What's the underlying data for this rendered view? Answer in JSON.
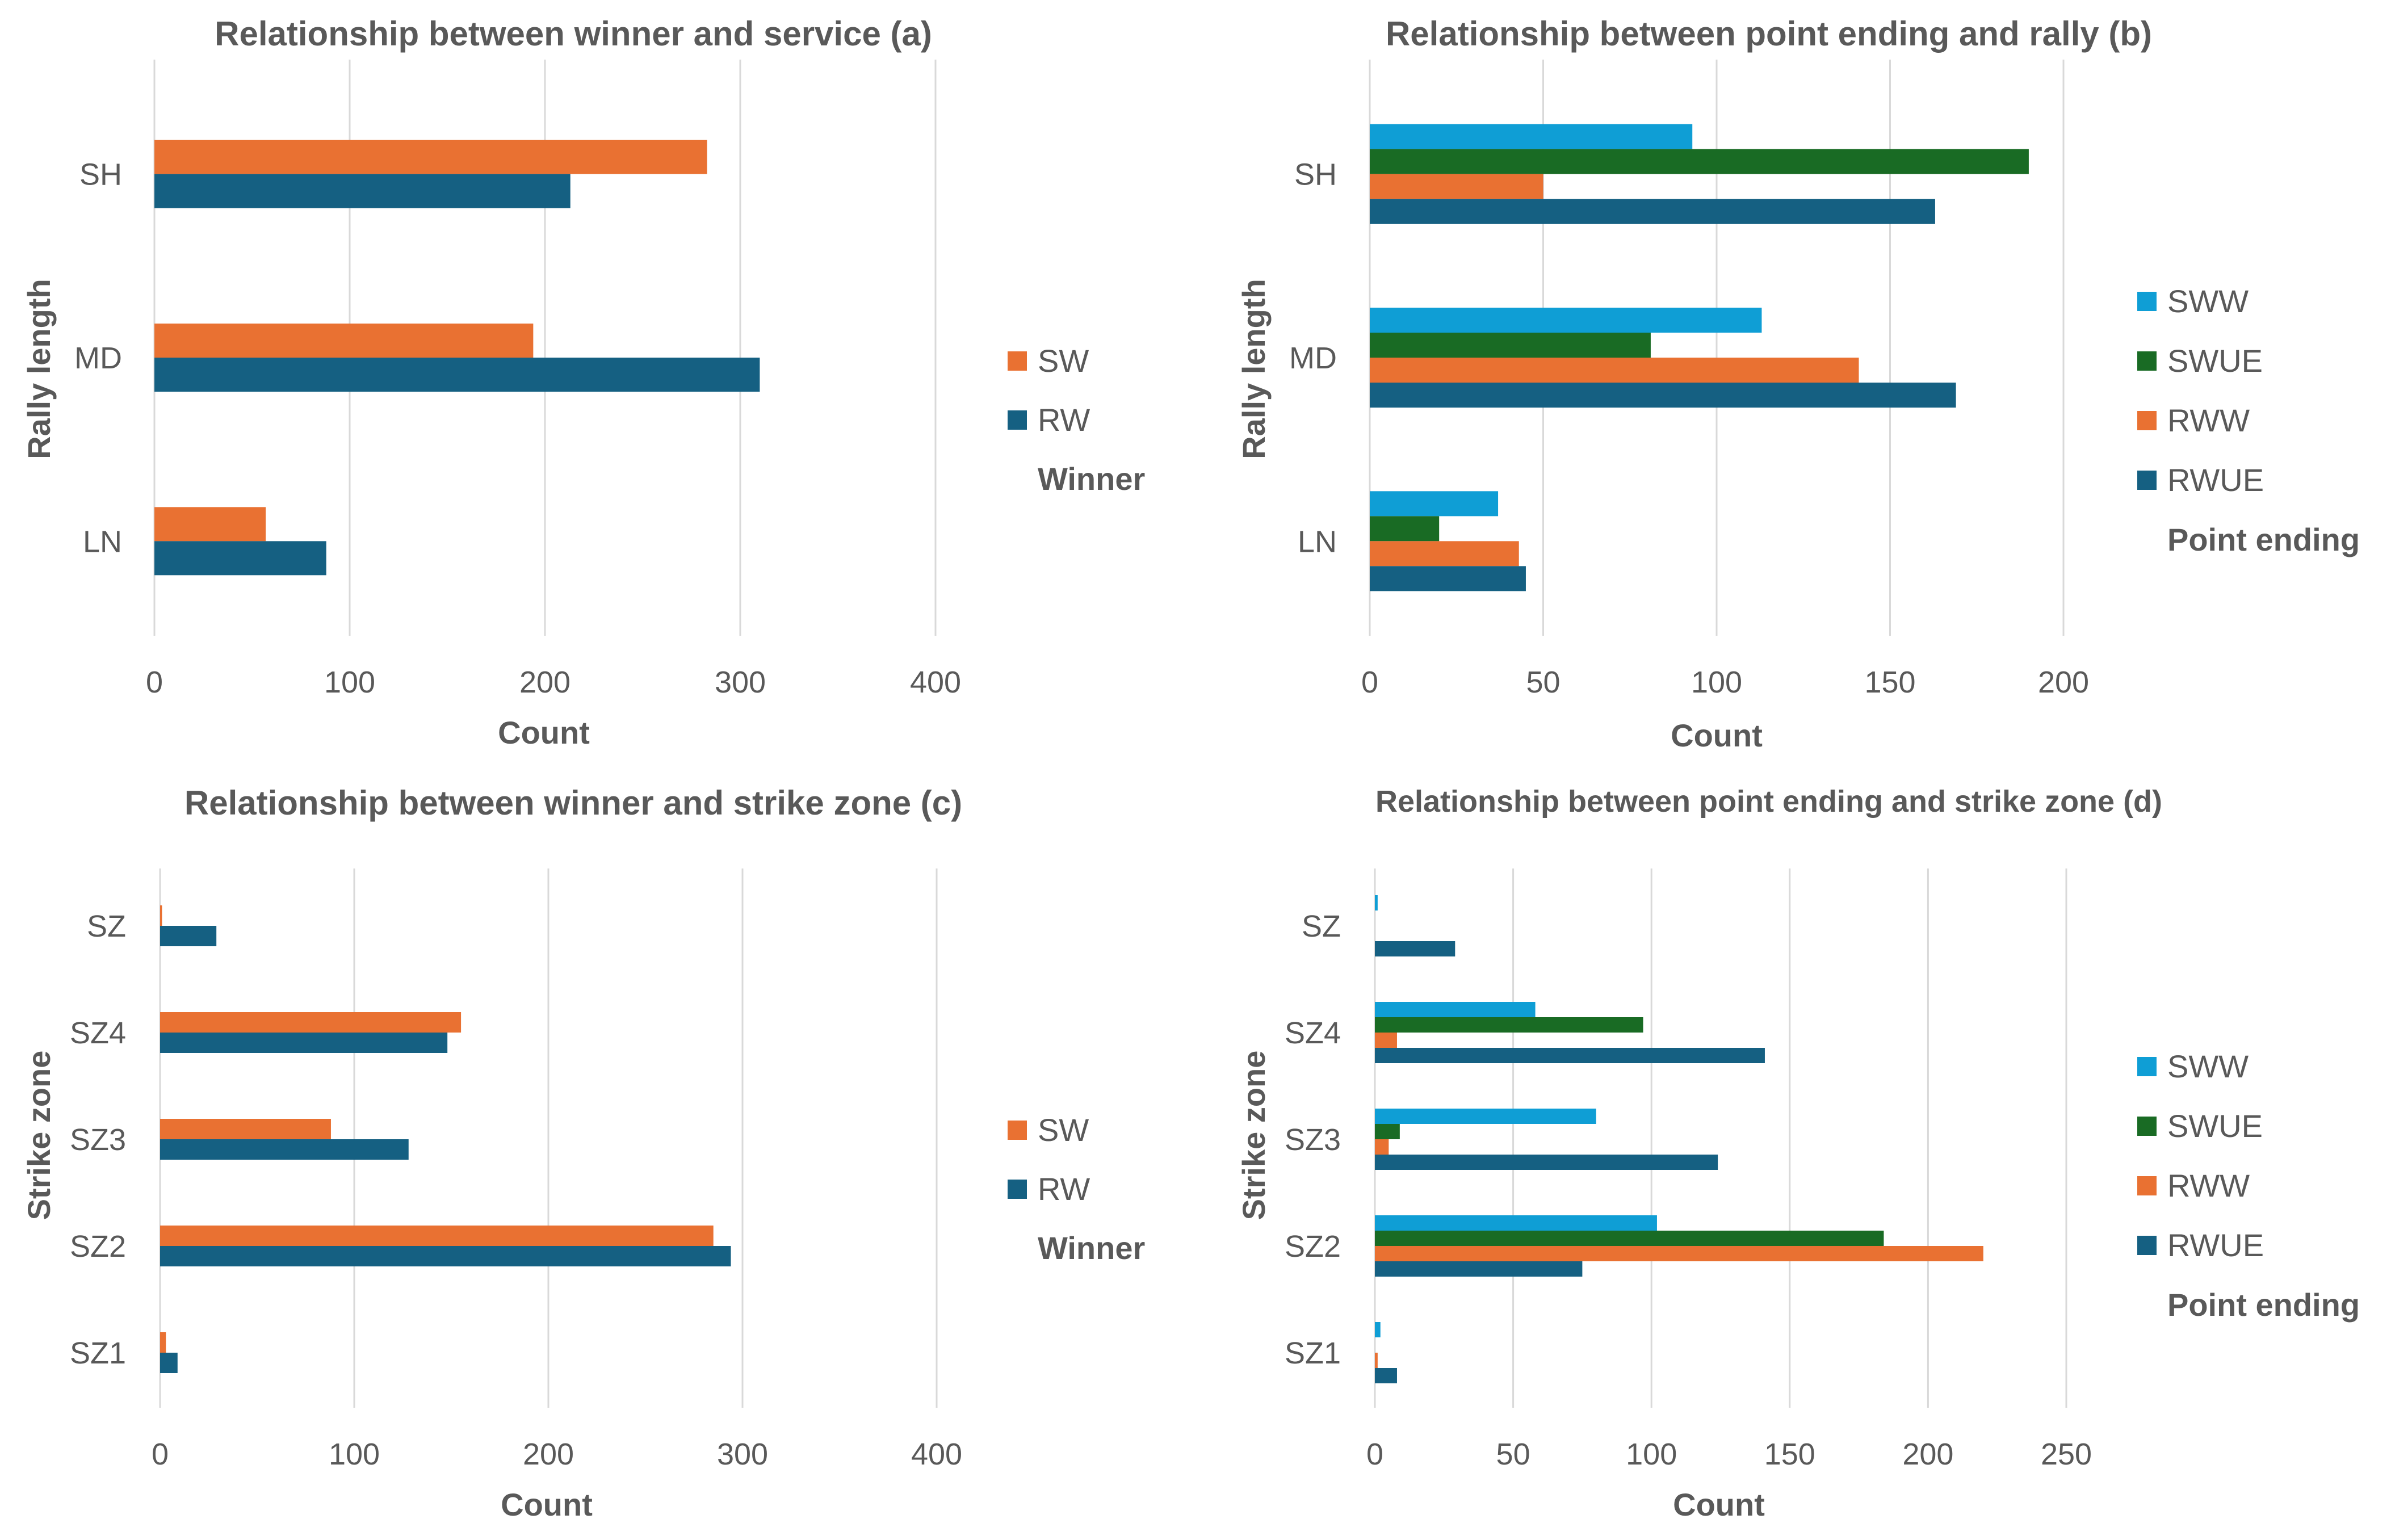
{
  "colors": {
    "SW": "#E97132",
    "RW": "#156082",
    "SWW": "#0F9ED5",
    "SWUE": "#196B24",
    "RWW": "#E97132",
    "RWUE": "#156082"
  },
  "chart_data": [
    {
      "id": "a",
      "type": "bar",
      "orientation": "horizontal",
      "title": "Relationship between winner and service (a)",
      "xlabel": "Count",
      "ylabel": "Rally length",
      "categories": [
        "SH",
        "MD",
        "LN"
      ],
      "xlim": [
        0,
        400
      ],
      "xticks": [
        "0",
        "100",
        "200",
        "300",
        "400"
      ],
      "grid": true,
      "legend_title": "Winner",
      "legend_position": "right",
      "series": [
        {
          "name": "SW",
          "values": [
            283,
            194,
            57
          ]
        },
        {
          "name": "RW",
          "values": [
            213,
            310,
            88
          ]
        }
      ]
    },
    {
      "id": "b",
      "type": "bar",
      "orientation": "horizontal",
      "title": "Relationship between point ending and rally (b)",
      "xlabel": "Count",
      "ylabel": "Rally length",
      "categories": [
        "SH",
        "MD",
        "LN"
      ],
      "xlim": [
        0,
        200
      ],
      "xticks": [
        "0",
        "50",
        "100",
        "150",
        "200"
      ],
      "grid": true,
      "legend_title": "Point ending",
      "legend_position": "right",
      "series": [
        {
          "name": "SWW",
          "values": [
            93,
            113,
            37
          ]
        },
        {
          "name": "SWUE",
          "values": [
            190,
            81,
            20
          ]
        },
        {
          "name": "RWW",
          "values": [
            50,
            141,
            43
          ]
        },
        {
          "name": "RWUE",
          "values": [
            163,
            169,
            45
          ]
        }
      ]
    },
    {
      "id": "c",
      "type": "bar",
      "orientation": "horizontal",
      "title": "Relationship between winner and strike zone (c)",
      "xlabel": "Count",
      "ylabel": "Strike zone",
      "categories": [
        "SZ",
        "SZ4",
        "SZ3",
        "SZ2",
        "SZ1"
      ],
      "xlim": [
        0,
        400
      ],
      "xticks": [
        "0",
        "100",
        "200",
        "300",
        "400"
      ],
      "grid": true,
      "legend_title": "Winner",
      "legend_position": "right",
      "series": [
        {
          "name": "SW",
          "values": [
            1,
            155,
            88,
            285,
            3
          ]
        },
        {
          "name": "RW",
          "values": [
            29,
            148,
            128,
            294,
            9
          ]
        }
      ]
    },
    {
      "id": "d",
      "type": "bar",
      "orientation": "horizontal",
      "title": "Relationship between point ending and strike zone (d)",
      "xlabel": "Count",
      "ylabel": "Strike zone",
      "categories": [
        "SZ",
        "SZ4",
        "SZ3",
        "SZ2",
        "SZ1"
      ],
      "xlim": [
        0,
        250
      ],
      "xticks": [
        "0",
        "50",
        "100",
        "150",
        "200",
        "250"
      ],
      "grid": true,
      "legend_title": "Point ending",
      "legend_position": "right",
      "series": [
        {
          "name": "SWW",
          "values": [
            1,
            58,
            80,
            102,
            2
          ]
        },
        {
          "name": "SWUE",
          "values": [
            0,
            97,
            9,
            184,
            0
          ]
        },
        {
          "name": "RWW",
          "values": [
            0,
            8,
            5,
            220,
            1
          ]
        },
        {
          "name": "RWUE",
          "values": [
            29,
            141,
            124,
            75,
            8
          ]
        }
      ]
    }
  ]
}
